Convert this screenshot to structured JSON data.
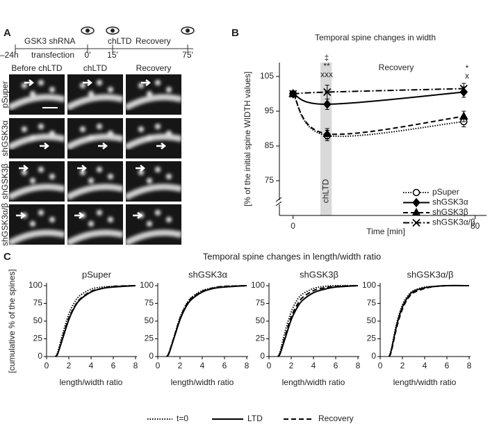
{
  "panel_labels": [
    "A",
    "B",
    "C"
  ],
  "timeline": [
    "–24h",
    "GSK3 shRNA",
    "transfection",
    "chLTD",
    "Recovery",
    "0'",
    "15'",
    "75'"
  ],
  "image_grid": {
    "columns": [
      "Before chLTD",
      "chLTD",
      "Recovery"
    ],
    "rows": [
      "pSuper",
      "shGSK3α",
      "shGSK3β",
      "shGSK3α/β"
    ]
  },
  "panel_c": {
    "title": "Temporal spine changes in length/width ratio",
    "legend": [
      {
        "name": "t=0",
        "dash": "dotted"
      },
      {
        "name": "LTD",
        "dash": "solid"
      },
      {
        "name": "Recovery",
        "dash": "dashed"
      }
    ]
  },
  "chart_data": [
    {
      "type": "line",
      "title": "Temporal spine changes in width",
      "xlabel": "Time [min]",
      "ylabel": "[% of the initial spine WIDTH values]",
      "x": [
        0,
        15,
        75
      ],
      "xlim": [
        -6,
        85
      ],
      "xticks": [
        0,
        80
      ],
      "ylim": [
        65,
        109
      ],
      "yticks": [
        75,
        85,
        95,
        105
      ],
      "axis_break": true,
      "legend": "lower right",
      "shaded_band": {
        "label": "chLTD",
        "xlim": [
          12,
          17
        ]
      },
      "annotations": [
        "Recovery",
        "‡",
        "**",
        "xxx",
        "*",
        "x"
      ],
      "series": [
        {
          "name": "pSuper",
          "color": "#000000",
          "dash": "dotted",
          "marker": "circle-open",
          "values": [
            100,
            88,
            92
          ],
          "errors": [
            0,
            1.5,
            1.5
          ]
        },
        {
          "name": "shGSK3α",
          "color": "#000000",
          "dash": "solid",
          "marker": "diamond",
          "values": [
            100,
            97,
            100.5
          ],
          "errors": [
            0,
            1.5,
            1.5
          ]
        },
        {
          "name": "shGSK3β",
          "color": "#000000",
          "dash": "dashed",
          "marker": "triangle",
          "values": [
            100,
            88.5,
            93.5
          ],
          "errors": [
            0,
            1.5,
            1.5
          ]
        },
        {
          "name": "shGSK3α/β",
          "color": "#000000",
          "dash": "dashdot",
          "marker": "cross",
          "values": [
            100,
            100.5,
            101.5
          ],
          "errors": [
            0,
            2,
            1.5
          ]
        }
      ]
    },
    {
      "type": "cdf",
      "title": "pSuper",
      "xlabel": "length/width ratio",
      "ylabel": "[cumulative % of the spines]",
      "x": [
        0.8,
        1,
        1.5,
        2,
        2.5,
        3,
        4,
        5,
        6,
        8
      ],
      "xlim": [
        0,
        8
      ],
      "xticks": [
        0,
        2,
        4,
        6,
        8
      ],
      "ylim": [
        0,
        100
      ],
      "yticks": [
        0,
        25,
        50,
        75,
        100
      ],
      "series": [
        {
          "dash": "dotted",
          "values": [
            0,
            6,
            35,
            60,
            76,
            86,
            95,
            98,
            99,
            100
          ]
        },
        {
          "dash": "solid",
          "values": [
            0,
            4,
            28,
            52,
            69,
            80,
            91,
            96,
            98,
            100
          ]
        },
        {
          "dash": "dashed",
          "values": [
            0,
            4,
            30,
            54,
            70,
            81,
            92,
            96,
            99,
            100
          ]
        }
      ]
    },
    {
      "type": "cdf",
      "title": "shGSK3α",
      "xlabel": "length/width ratio",
      "x": [
        0.8,
        1,
        1.5,
        2,
        2.5,
        3,
        4,
        5,
        6,
        8
      ],
      "xlim": [
        0,
        8
      ],
      "xticks": [
        0,
        2,
        4,
        6,
        8
      ],
      "ylim": [
        0,
        100
      ],
      "yticks": [
        0,
        25,
        50,
        75,
        100
      ],
      "series": [
        {
          "dash": "dotted",
          "values": [
            0,
            5,
            30,
            55,
            72,
            83,
            93,
            97,
            99,
            100
          ]
        },
        {
          "dash": "solid",
          "values": [
            0,
            4,
            28,
            52,
            69,
            80,
            91,
            96,
            98,
            100
          ]
        },
        {
          "dash": "dashed",
          "values": [
            0,
            5,
            29,
            54,
            71,
            82,
            92,
            97,
            99,
            100
          ]
        }
      ]
    },
    {
      "type": "cdf",
      "title": "shGSK3β",
      "xlabel": "length/width ratio",
      "x": [
        0.8,
        1,
        1.5,
        2,
        2.5,
        3,
        4,
        5,
        6,
        8
      ],
      "xlim": [
        0,
        8
      ],
      "xticks": [
        0,
        2,
        4,
        6,
        8
      ],
      "ylim": [
        0,
        100
      ],
      "yticks": [
        0,
        25,
        50,
        75,
        100
      ],
      "series": [
        {
          "dash": "dotted",
          "values": [
            0,
            7,
            38,
            63,
            79,
            88,
            96,
            99,
            100,
            100
          ]
        },
        {
          "dash": "solid",
          "values": [
            0,
            4,
            28,
            52,
            68,
            79,
            90,
            95,
            98,
            100
          ]
        },
        {
          "dash": "dashed",
          "values": [
            0,
            5,
            31,
            56,
            72,
            83,
            93,
            97,
            99,
            100
          ]
        }
      ]
    },
    {
      "type": "cdf",
      "title": "shGSK3α/β",
      "xlabel": "length/width ratio",
      "x": [
        0.8,
        1,
        1.5,
        2,
        2.5,
        3,
        4,
        5,
        6,
        8
      ],
      "xlim": [
        0,
        8
      ],
      "xticks": [
        0,
        2,
        4,
        6,
        8
      ],
      "ylim": [
        0,
        100
      ],
      "yticks": [
        0,
        25,
        50,
        75,
        100
      ],
      "series": [
        {
          "dash": "dotted",
          "values": [
            0,
            10,
            48,
            73,
            86,
            93,
            98,
            99,
            100,
            100
          ]
        },
        {
          "dash": "solid",
          "values": [
            0,
            9,
            45,
            70,
            84,
            92,
            97,
            99,
            100,
            100
          ]
        },
        {
          "dash": "dashed",
          "values": [
            0,
            7,
            42,
            67,
            82,
            90,
            96,
            99,
            100,
            100
          ]
        }
      ]
    }
  ]
}
